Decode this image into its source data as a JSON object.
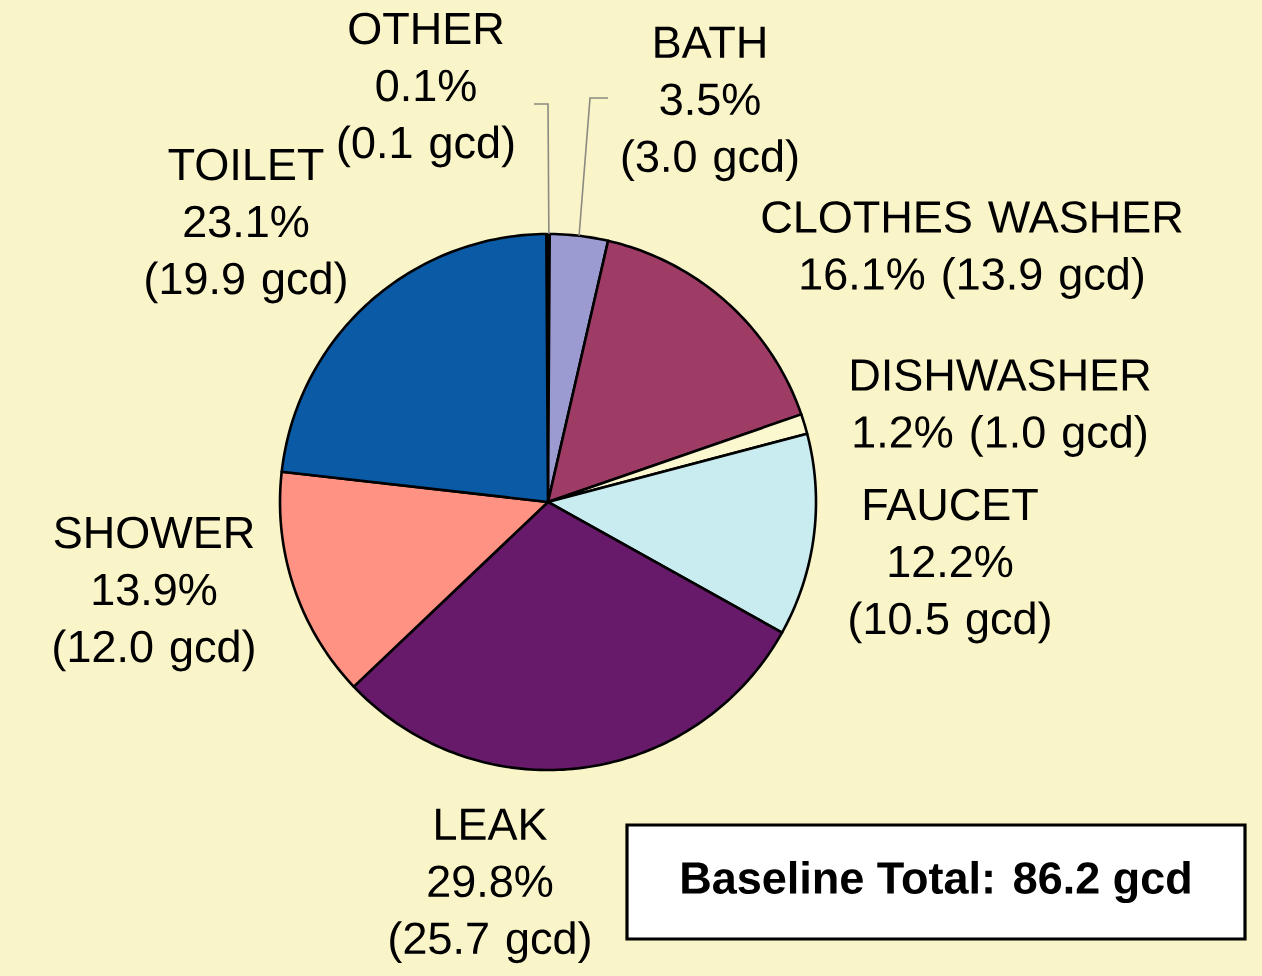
{
  "chart_data": {
    "type": "pie",
    "categories": [
      "OTHER",
      "BATH",
      "CLOTHES WASHER",
      "DISHWASHER",
      "FAUCET",
      "LEAK",
      "SHOWER",
      "TOILET"
    ],
    "values": [
      0.1,
      3.5,
      16.1,
      1.2,
      12.2,
      29.8,
      13.9,
      23.1
    ],
    "colors": [
      "#fdfbe0",
      "#9b9bd2",
      "#9e3c66",
      "#fbf8d0",
      "#c9ecf0",
      "#681a6a",
      "#ff9282",
      "#0a5aa5"
    ],
    "value_labels": [
      "0.1% (0.1 gcd)",
      "3.5% (3.0 gcd)",
      "16.1% (13.9 gcd)",
      "1.2% (1.0 gcd)",
      "12.2% (10.5 gcd)",
      "29.8% (25.7 gcd)",
      "13.9% (12.0 gcd)",
      "23.1% (19.9 gcd)"
    ],
    "annotations": [
      "Baseline Total: 86.2 gcd"
    ]
  }
}
